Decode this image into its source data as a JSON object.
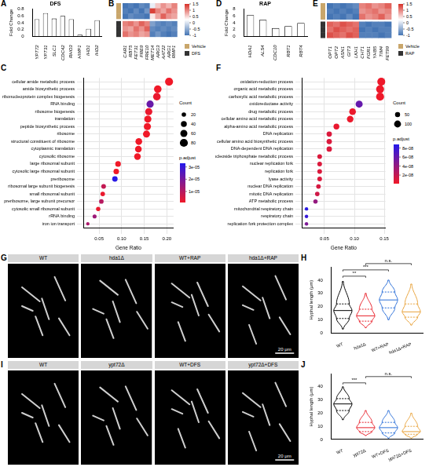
{
  "chart_data": [
    {
      "panel": "A",
      "type": "bar",
      "title": "DFS",
      "y_label": "Fold Change",
      "categories": [
        "YPT72",
        "YPT31",
        "SLC1",
        "CDC42",
        "RHO3",
        "HWP1",
        "IHD1",
        "IHD2"
      ],
      "values": [
        0.5,
        0.68,
        0.52,
        0.6,
        0.5,
        0.05,
        0.22,
        0.47
      ],
      "color": "#ffffff",
      "ylim": [
        0,
        0.8
      ],
      "yticks": [
        0,
        0.2,
        0.4,
        0.6,
        0.8
      ],
      "grid": false
    },
    {
      "panel": "B",
      "type": "heatmap",
      "categories": [
        "CAR1",
        "RBT5",
        "FET31",
        "FRE9",
        "FRE10",
        "MET14",
        "ARG3",
        "AAT22",
        "ARG1",
        "RMP1"
      ],
      "groups": [
        {
          "name": "Vehicle",
          "color": "#c9a66b",
          "rows": [
            [
              -1.0,
              -0.9,
              -1.0,
              -0.8,
              -0.9,
              0.1,
              0.6,
              0.9,
              0.7,
              1.0
            ],
            [
              -0.9,
              -1.0,
              -0.8,
              -1.0,
              -0.7,
              1.4,
              1.0,
              0.8,
              1.1,
              0.9
            ],
            [
              -1.0,
              -0.8,
              -0.9,
              -0.9,
              -1.0,
              0.4,
              0.8,
              1.2,
              0.9,
              0.8
            ]
          ]
        },
        {
          "name": "DFS",
          "color": "#333333",
          "rows": [
            [
              1.0,
              1.1,
              0.9,
              1.2,
              1.0,
              -0.6,
              -0.8,
              -0.9,
              -0.8,
              -0.9
            ],
            [
              0.9,
              0.8,
              1.1,
              0.9,
              1.2,
              -0.8,
              -0.9,
              -0.8,
              -0.9,
              -0.8
            ],
            [
              1.1,
              0.9,
              1.0,
              0.8,
              0.9,
              -0.9,
              -0.7,
              -0.9,
              -1.0,
              -0.9
            ]
          ]
        }
      ],
      "colorbar": {
        "range": [
          -1,
          1.5
        ],
        "ticks": [
          1.5,
          1,
          0.5,
          0,
          -0.5,
          -1
        ]
      }
    },
    {
      "panel": "C",
      "type": "dot",
      "x_label": "Gene Ratio",
      "categories": [
        "cellular amide metabolic process",
        "amide biosynthetic process",
        "ribonucleoprotein complex biogenesis",
        "RNA binding",
        "ribosome biogenesis",
        "translation",
        "peptide biosynthetic process",
        "ribosome",
        "structural constituent of ribosome",
        "cytoplasmic translation",
        "cytosolic ribosome",
        "large ribosomal subunit",
        "cytosolic large ribosomal subunit",
        "preribosome",
        "ribosomal large subunit biogenesis",
        "small ribosomal subunit",
        "preribosome, large subunit precursor",
        "cytosolic small ribosomal subunit",
        "rRNA binding",
        "iron ion transport"
      ],
      "values": [
        0.205,
        0.18,
        0.178,
        0.163,
        0.16,
        0.158,
        0.157,
        0.155,
        0.138,
        0.137,
        0.135,
        0.092,
        0.088,
        0.085,
        0.06,
        0.058,
        0.055,
        0.048,
        0.04,
        0.025
      ],
      "count": [
        80,
        70,
        69,
        63,
        62,
        61,
        61,
        60,
        54,
        53,
        52,
        36,
        34,
        33,
        23,
        22,
        21,
        19,
        16,
        10
      ],
      "p_adjust": [
        1e-06,
        1e-06,
        2e-06,
        2.2e-05,
        2e-06,
        1e-06,
        1e-06,
        1e-06,
        1e-06,
        1e-06,
        1e-06,
        1e-06,
        1e-06,
        3.2e-05,
        8e-06,
        2e-06,
        1e-05,
        2e-06,
        1.4e-05,
        1.2e-05
      ],
      "xlim": [
        0.015,
        0.215
      ],
      "xticks": [
        0.05,
        {
          "value": 0.1,
          "label": "0.10"
        },
        0.15,
        {
          "value": 0.2,
          "label": "0.20"
        }
      ],
      "size_legend": {
        "title": "Count",
        "values": [
          20,
          40,
          60,
          80
        ]
      },
      "color_legend": {
        "title": "p.adjust",
        "range": [
          1e-06,
          3.3e-05
        ],
        "ticks": [
          {
            "value": 1e-05,
            "label": "1e-05"
          },
          {
            "value": 2e-05,
            "label": "2e-05"
          },
          {
            "value": 3e-05,
            "label": "3e-05"
          }
        ]
      },
      "grid": true
    },
    {
      "panel": "D",
      "type": "bar",
      "title": "RAP",
      "y_label": "Fold Change",
      "categories": [
        "HDA1",
        "ALS4",
        "CDC10",
        "RBT1",
        "RBT4"
      ],
      "values": [
        6.2,
        4.8,
        2.4,
        3.0,
        3.9
      ],
      "color": "#ffffff",
      "ylim": [
        0,
        8
      ],
      "yticks": [
        0,
        2,
        4,
        6,
        8
      ],
      "grid": false
    },
    {
      "panel": "E",
      "type": "heatmap",
      "categories": [
        "OPT1",
        "OPT2",
        "ASN1",
        "GIT3",
        "LKH1",
        "CHT1",
        "FGR1",
        "YHB5",
        "TIM4",
        "FET99"
      ],
      "groups": [
        {
          "name": "Vehicle",
          "color": "#c9a66b",
          "rows": [
            [
              -1.0,
              -0.9,
              -1.0,
              -0.9,
              -0.8,
              1.0,
              1.1,
              0.9,
              1.0,
              1.2
            ],
            [
              -0.9,
              -1.0,
              -0.9,
              -1.0,
              -0.9,
              0.9,
              1.0,
              1.1,
              0.9,
              1.0
            ],
            [
              -1.0,
              -0.9,
              -1.0,
              -0.8,
              -1.0,
              1.1,
              0.9,
              1.0,
              1.2,
              0.9
            ]
          ]
        },
        {
          "name": "RAP",
          "color": "#333333",
          "rows": [
            [
              1.2,
              1.1,
              1.3,
              1.2,
              1.1,
              -0.9,
              -1.0,
              -0.9,
              -0.9,
              -1.0
            ],
            [
              1.1,
              1.3,
              1.2,
              1.1,
              1.2,
              -1.0,
              -0.9,
              -1.0,
              -0.9,
              -0.9
            ],
            [
              1.3,
              1.2,
              1.1,
              1.3,
              1.2,
              -0.9,
              -0.9,
              -0.9,
              -1.0,
              -0.9
            ]
          ]
        }
      ],
      "colorbar": {
        "range": [
          -1,
          1.5
        ],
        "ticks": [
          1.5,
          1,
          0.5,
          0,
          -0.5,
          -1
        ]
      }
    },
    {
      "panel": "F",
      "type": "dot",
      "x_label": "Gene Ratio",
      "categories": [
        "oxidation-reduction process",
        "organic acid metabolic process",
        "carboxylic acid metabolic process",
        "oxidoreductase activity",
        "drug metabolic process",
        "cellular amino acid metabolic process",
        "alpha-amino acid metabolic process",
        "DNA replication",
        "cellular amino acid biosynthetic process",
        "DNA-dependent DNA replication",
        "nucleoside triphosphate metabolic process",
        "nuclear replication fork",
        "replication fork",
        "lyase activity",
        "nuclear DNA replication",
        "mitotic DNA replication",
        "ATP metabolic process",
        "mitochondrial respiratory chain",
        "respiratory chain",
        "replication fork protection complex"
      ],
      "values": [
        0.145,
        0.143,
        0.143,
        0.108,
        0.097,
        0.093,
        0.07,
        0.058,
        0.058,
        0.058,
        0.042,
        0.042,
        0.042,
        0.042,
        0.04,
        0.038,
        0.035,
        0.02,
        0.02,
        0.02
      ],
      "count": [
        138,
        136,
        136,
        103,
        92,
        88,
        66,
        55,
        55,
        55,
        40,
        40,
        40,
        40,
        38,
        36,
        33,
        19,
        19,
        19
      ],
      "p_adjust": [
        2e-09,
        2e-09,
        2e-09,
        6e-08,
        3e-09,
        3e-09,
        4e-09,
        1e-08,
        1e-08,
        1e-08,
        1e-08,
        1e-08,
        1e-08,
        1e-08,
        1.2e-08,
        1.5e-08,
        4e-08,
        8.5e-08,
        8e-08,
        5e-08
      ],
      "xlim": [
        0.012,
        0.152
      ],
      "xticks": [
        0.05,
        {
          "value": 0.1,
          "label": "0.10"
        },
        0.15
      ],
      "size_legend": {
        "title": "Count",
        "values": [
          50,
          100
        ]
      },
      "color_legend": {
        "title": "p.adjust",
        "range": [
          1e-09,
          8.8e-08
        ],
        "ticks": [
          {
            "value": 2e-08,
            "label": "2e-08"
          },
          {
            "value": 4e-08,
            "label": "4e-08"
          },
          {
            "value": 6e-08,
            "label": "6e-08"
          },
          {
            "value": 8e-08,
            "label": "8e-08"
          }
        ]
      },
      "grid": true
    },
    {
      "panel": "H",
      "type": "violin",
      "y_label": "Hyphal length (μm)",
      "categories": [
        "WT",
        "hda1Δ",
        "WT+RAP",
        "hda1Δ+RAP"
      ],
      "colors": [
        "#000000",
        "#e8212b",
        "#2b6fd8",
        "#e8a23a"
      ],
      "min": [
        3,
        4,
        10,
        6
      ],
      "q1": [
        11,
        9,
        19,
        12
      ],
      "median": [
        17,
        13,
        25,
        16
      ],
      "q3": [
        22,
        18,
        31,
        22
      ],
      "max": [
        39,
        30,
        40,
        37
      ],
      "ylim": [
        0,
        50
      ],
      "yticks": [
        0,
        10,
        20,
        30,
        40
      ],
      "grid": false,
      "comparisons": [
        {
          "pair": [
            "WT",
            "hda1Δ"
          ],
          "label": "**"
        },
        {
          "pair": [
            "WT",
            "WT+RAP"
          ],
          "label": "***"
        },
        {
          "pair": [
            "hda1Δ",
            "hda1Δ+RAP"
          ],
          "label": "n.s."
        }
      ]
    },
    {
      "panel": "J",
      "type": "violin",
      "y_label": "Hyphal length (μm)",
      "categories": [
        "WT",
        "ypt72Δ",
        "WT+DFS",
        "ypt72Δ+DFS"
      ],
      "colors": [
        "#000000",
        "#e8212b",
        "#2b6fd8",
        "#e8a23a"
      ],
      "min": [
        15,
        3,
        1,
        1
      ],
      "q1": [
        22,
        6,
        5,
        4
      ],
      "median": [
        27,
        9,
        9,
        6
      ],
      "q3": [
        31,
        13,
        13,
        10
      ],
      "max": [
        40,
        22,
        22,
        20
      ],
      "ylim": [
        0,
        50
      ],
      "yticks": [
        0,
        10,
        20,
        30,
        40
      ],
      "grid": false,
      "comparisons": [
        {
          "pair": [
            "WT",
            "ypt72Δ"
          ],
          "label": "***"
        },
        {
          "pair": [
            "ypt72Δ",
            "ypt72Δ+DFS"
          ],
          "label": "n.s."
        }
      ]
    }
  ],
  "images": [
    {
      "panel": "G",
      "labels": [
        "WT",
        "hda1Δ",
        "WT+RAP",
        "hda1Δ+RAP"
      ],
      "scale_bar": "20 μm"
    },
    {
      "panel": "I",
      "labels": [
        "WT",
        "ypt72Δ",
        "WT+DFS",
        "ypt72Δ+DFS"
      ],
      "scale_bar": "20 μm"
    }
  ]
}
